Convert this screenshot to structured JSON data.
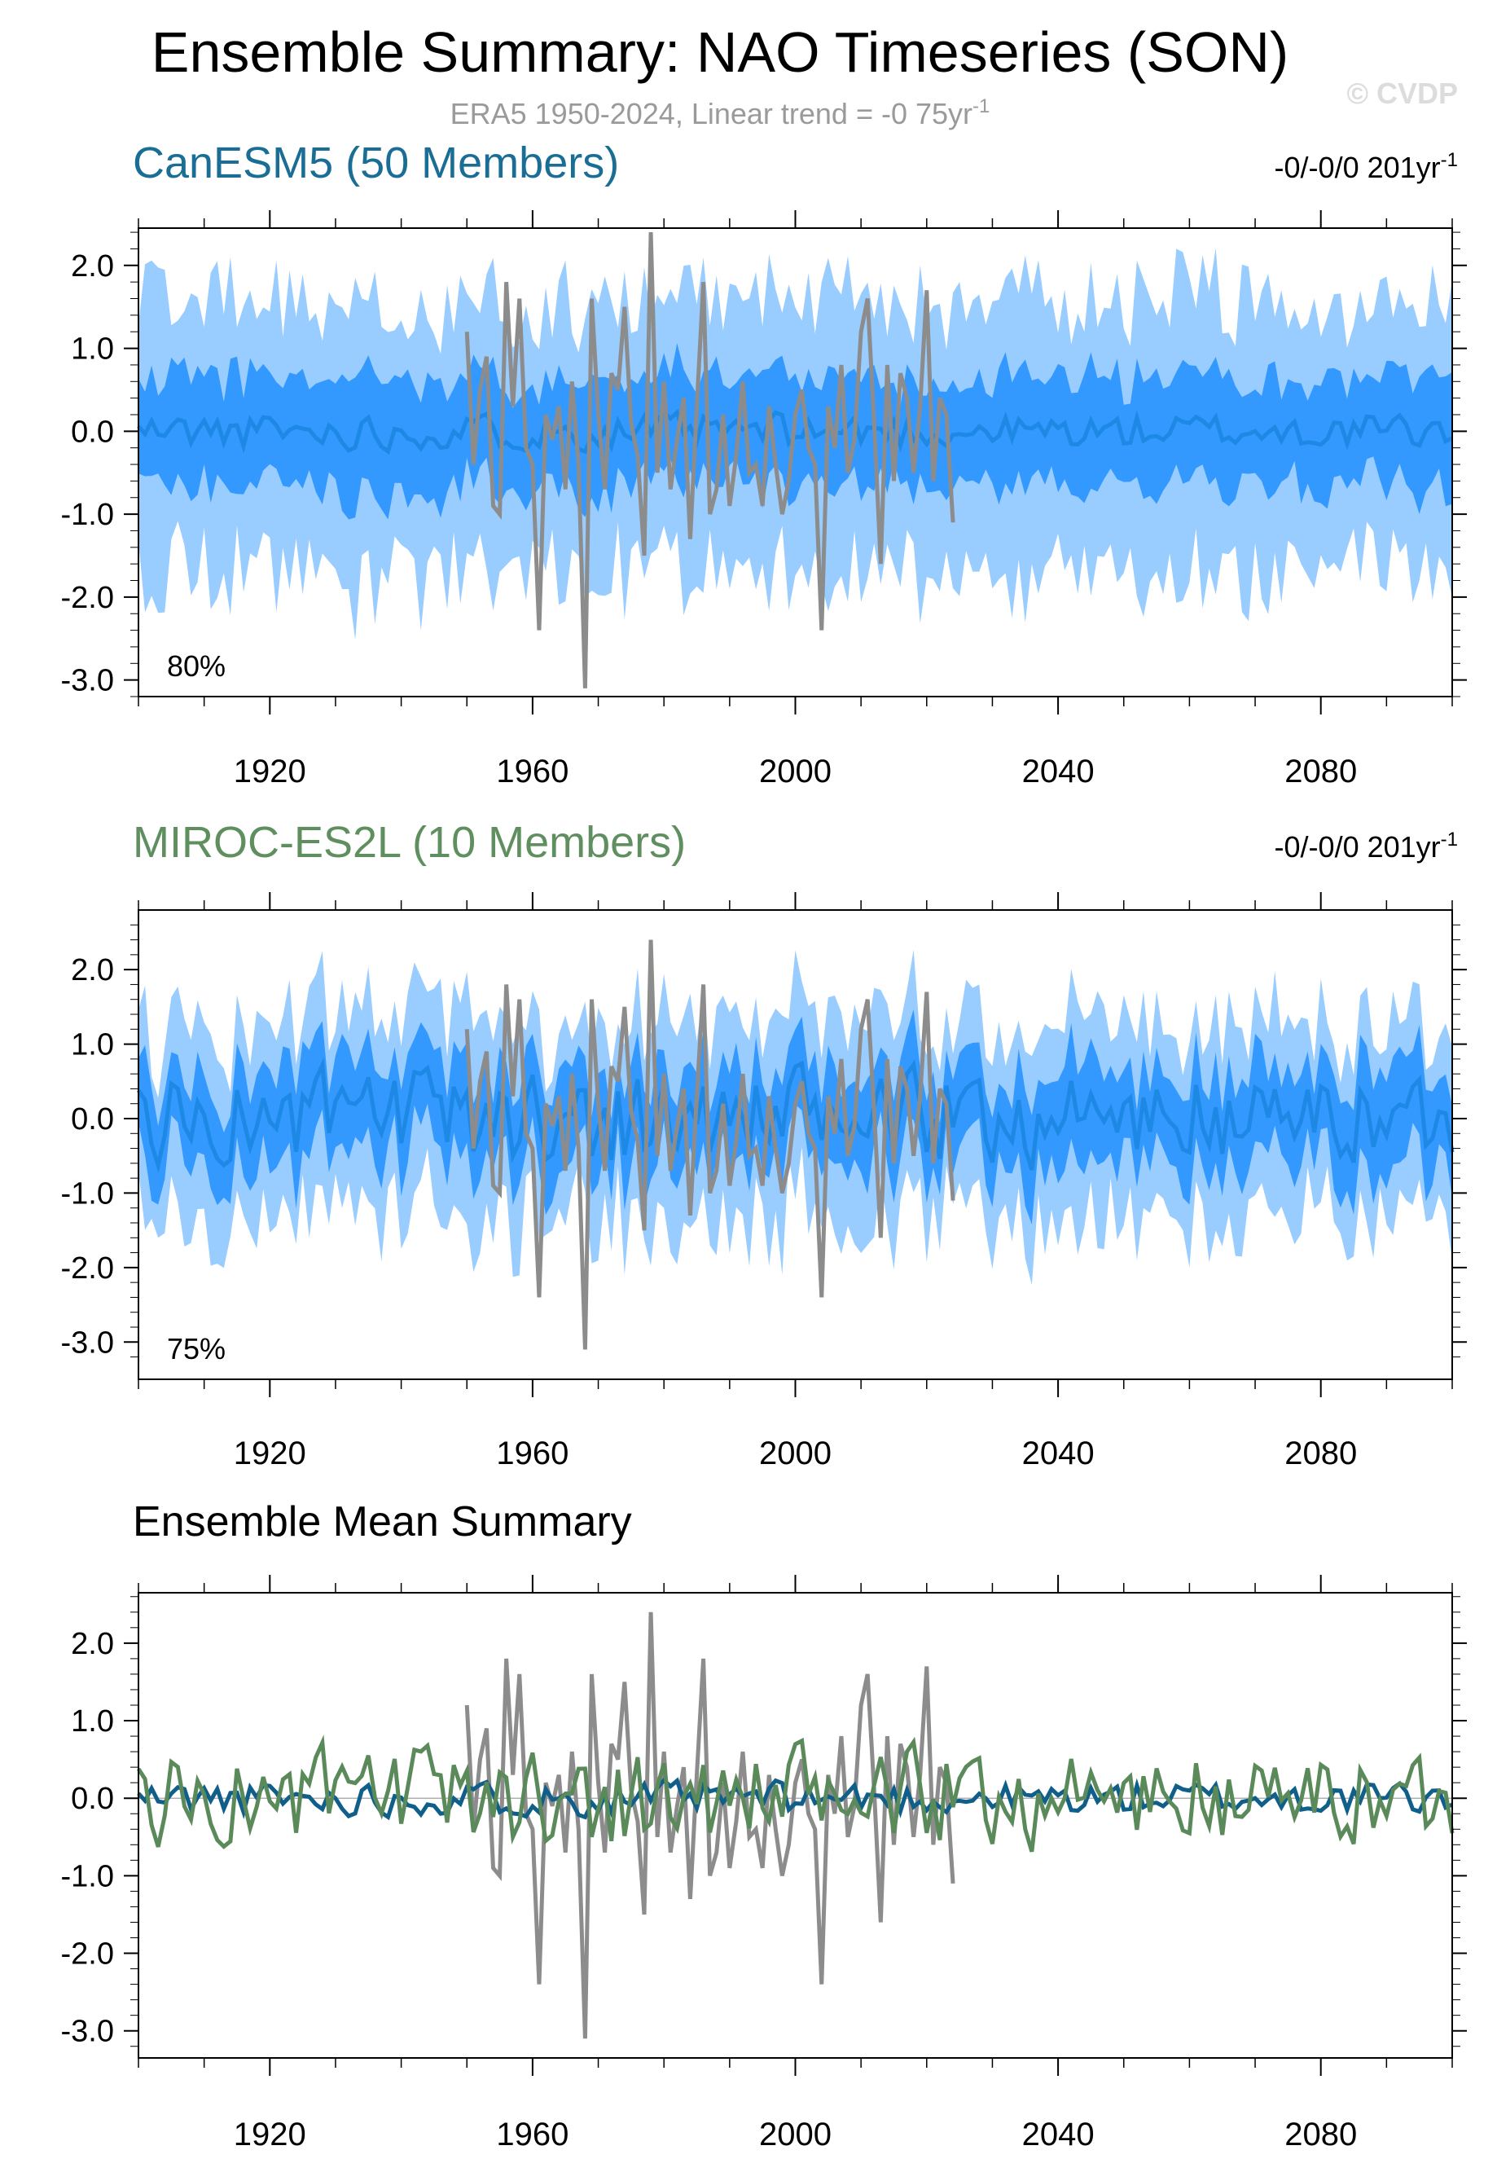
{
  "figure": {
    "title": "Ensemble Summary: NAO Timeseries (SON)",
    "subtitle": "ERA5 1950-2024, Linear trend = -0 75yr",
    "subtitle_sup": "-1",
    "watermark": "© CVDP"
  },
  "colors": {
    "outer_band": "#99ccff",
    "inner_band": "#3399ff",
    "ens_mean": "#1e88e5",
    "obs": "#8c8c8c",
    "canesm5": "#0f5f8a",
    "miroc": "#5a8a5a",
    "title_canesm5": "#1a6e96",
    "title_miroc": "#5f8f5f"
  },
  "chart_data": [
    {
      "type": "area",
      "name": "canesm5",
      "title": "CanESM5 (50 Members)",
      "trend_label": "-0/-0/0 201yr",
      "trend_sup": "-1",
      "percent_label": "80%",
      "x_range": [
        1900,
        2100
      ],
      "ylim": [
        -3.2,
        2.45
      ],
      "y_ticks": [
        "2.0",
        "1.0",
        "0.0",
        "-1.0",
        "-2.0",
        "-3.0"
      ],
      "x_ticks": [
        "1920",
        "1960",
        "2000",
        "2040",
        "2080"
      ],
      "band_outer_halfwidth": 1.6,
      "band_inner_halfwidth": 0.65,
      "ensemble_mean_amplitude": 0.12,
      "seed": 11
    },
    {
      "type": "area",
      "name": "miroc-es2l",
      "title": "MIROC-ES2L (10 Members)",
      "trend_label": "-0/-0/0 201yr",
      "trend_sup": "-1",
      "percent_label": "75%",
      "x_range": [
        1900,
        2100
      ],
      "ylim": [
        -3.5,
        2.8
      ],
      "y_ticks": [
        "2.0",
        "1.0",
        "0.0",
        "-1.0",
        "-2.0",
        "-3.0"
      ],
      "x_ticks": [
        "1920",
        "1960",
        "2000",
        "2040",
        "2080"
      ],
      "band_outer_halfwidth": 1.25,
      "band_inner_halfwidth": 0.6,
      "ensemble_mean_amplitude": 0.35,
      "seed": 23
    },
    {
      "type": "line",
      "name": "ensemble-mean-summary",
      "title": "Ensemble Mean Summary",
      "x_range": [
        1900,
        2100
      ],
      "ylim": [
        -3.35,
        2.65
      ],
      "y_ticks": [
        "2.0",
        "1.0",
        "0.0",
        "-1.0",
        "-2.0",
        "-3.0"
      ],
      "x_ticks": [
        "1920",
        "1960",
        "2000",
        "2040",
        "2080"
      ],
      "series": [
        {
          "color_key": "canesm5",
          "amplitude": 0.12,
          "seed": 11
        },
        {
          "color_key": "miroc",
          "amplitude": 0.35,
          "seed": 23
        }
      ]
    }
  ],
  "observations": {
    "years": [
      1950,
      2024
    ],
    "values": [
      1.2,
      -0.4,
      0.5,
      0.9,
      -0.9,
      -1.0,
      1.8,
      0.3,
      1.6,
      -0.2,
      -0.4,
      -2.4,
      0.2,
      -0.1,
      0.3,
      -0.7,
      0.6,
      -0.4,
      -3.1,
      1.6,
      0.2,
      -0.7,
      0.7,
      0.5,
      1.5,
      0.1,
      -0.3,
      -1.5,
      2.4,
      -0.5,
      0.6,
      -0.7,
      -0.1,
      0.4,
      -1.3,
      0.3,
      1.8,
      -1.0,
      -0.7,
      0.2,
      -0.9,
      -0.3,
      0.6,
      -0.5,
      -0.4,
      -0.9,
      0.3,
      -0.4,
      -1.0,
      -0.6,
      0.2,
      0.5,
      -0.2,
      -0.4,
      -2.4,
      0.3,
      -0.2,
      0.8,
      -0.5,
      -0.1,
      1.2,
      1.6,
      0.1,
      -1.6,
      0.8,
      -0.6,
      0.7,
      0.4,
      -0.5,
      0.3,
      1.7,
      -0.6,
      0.4,
      0.2,
      -1.1
    ]
  }
}
